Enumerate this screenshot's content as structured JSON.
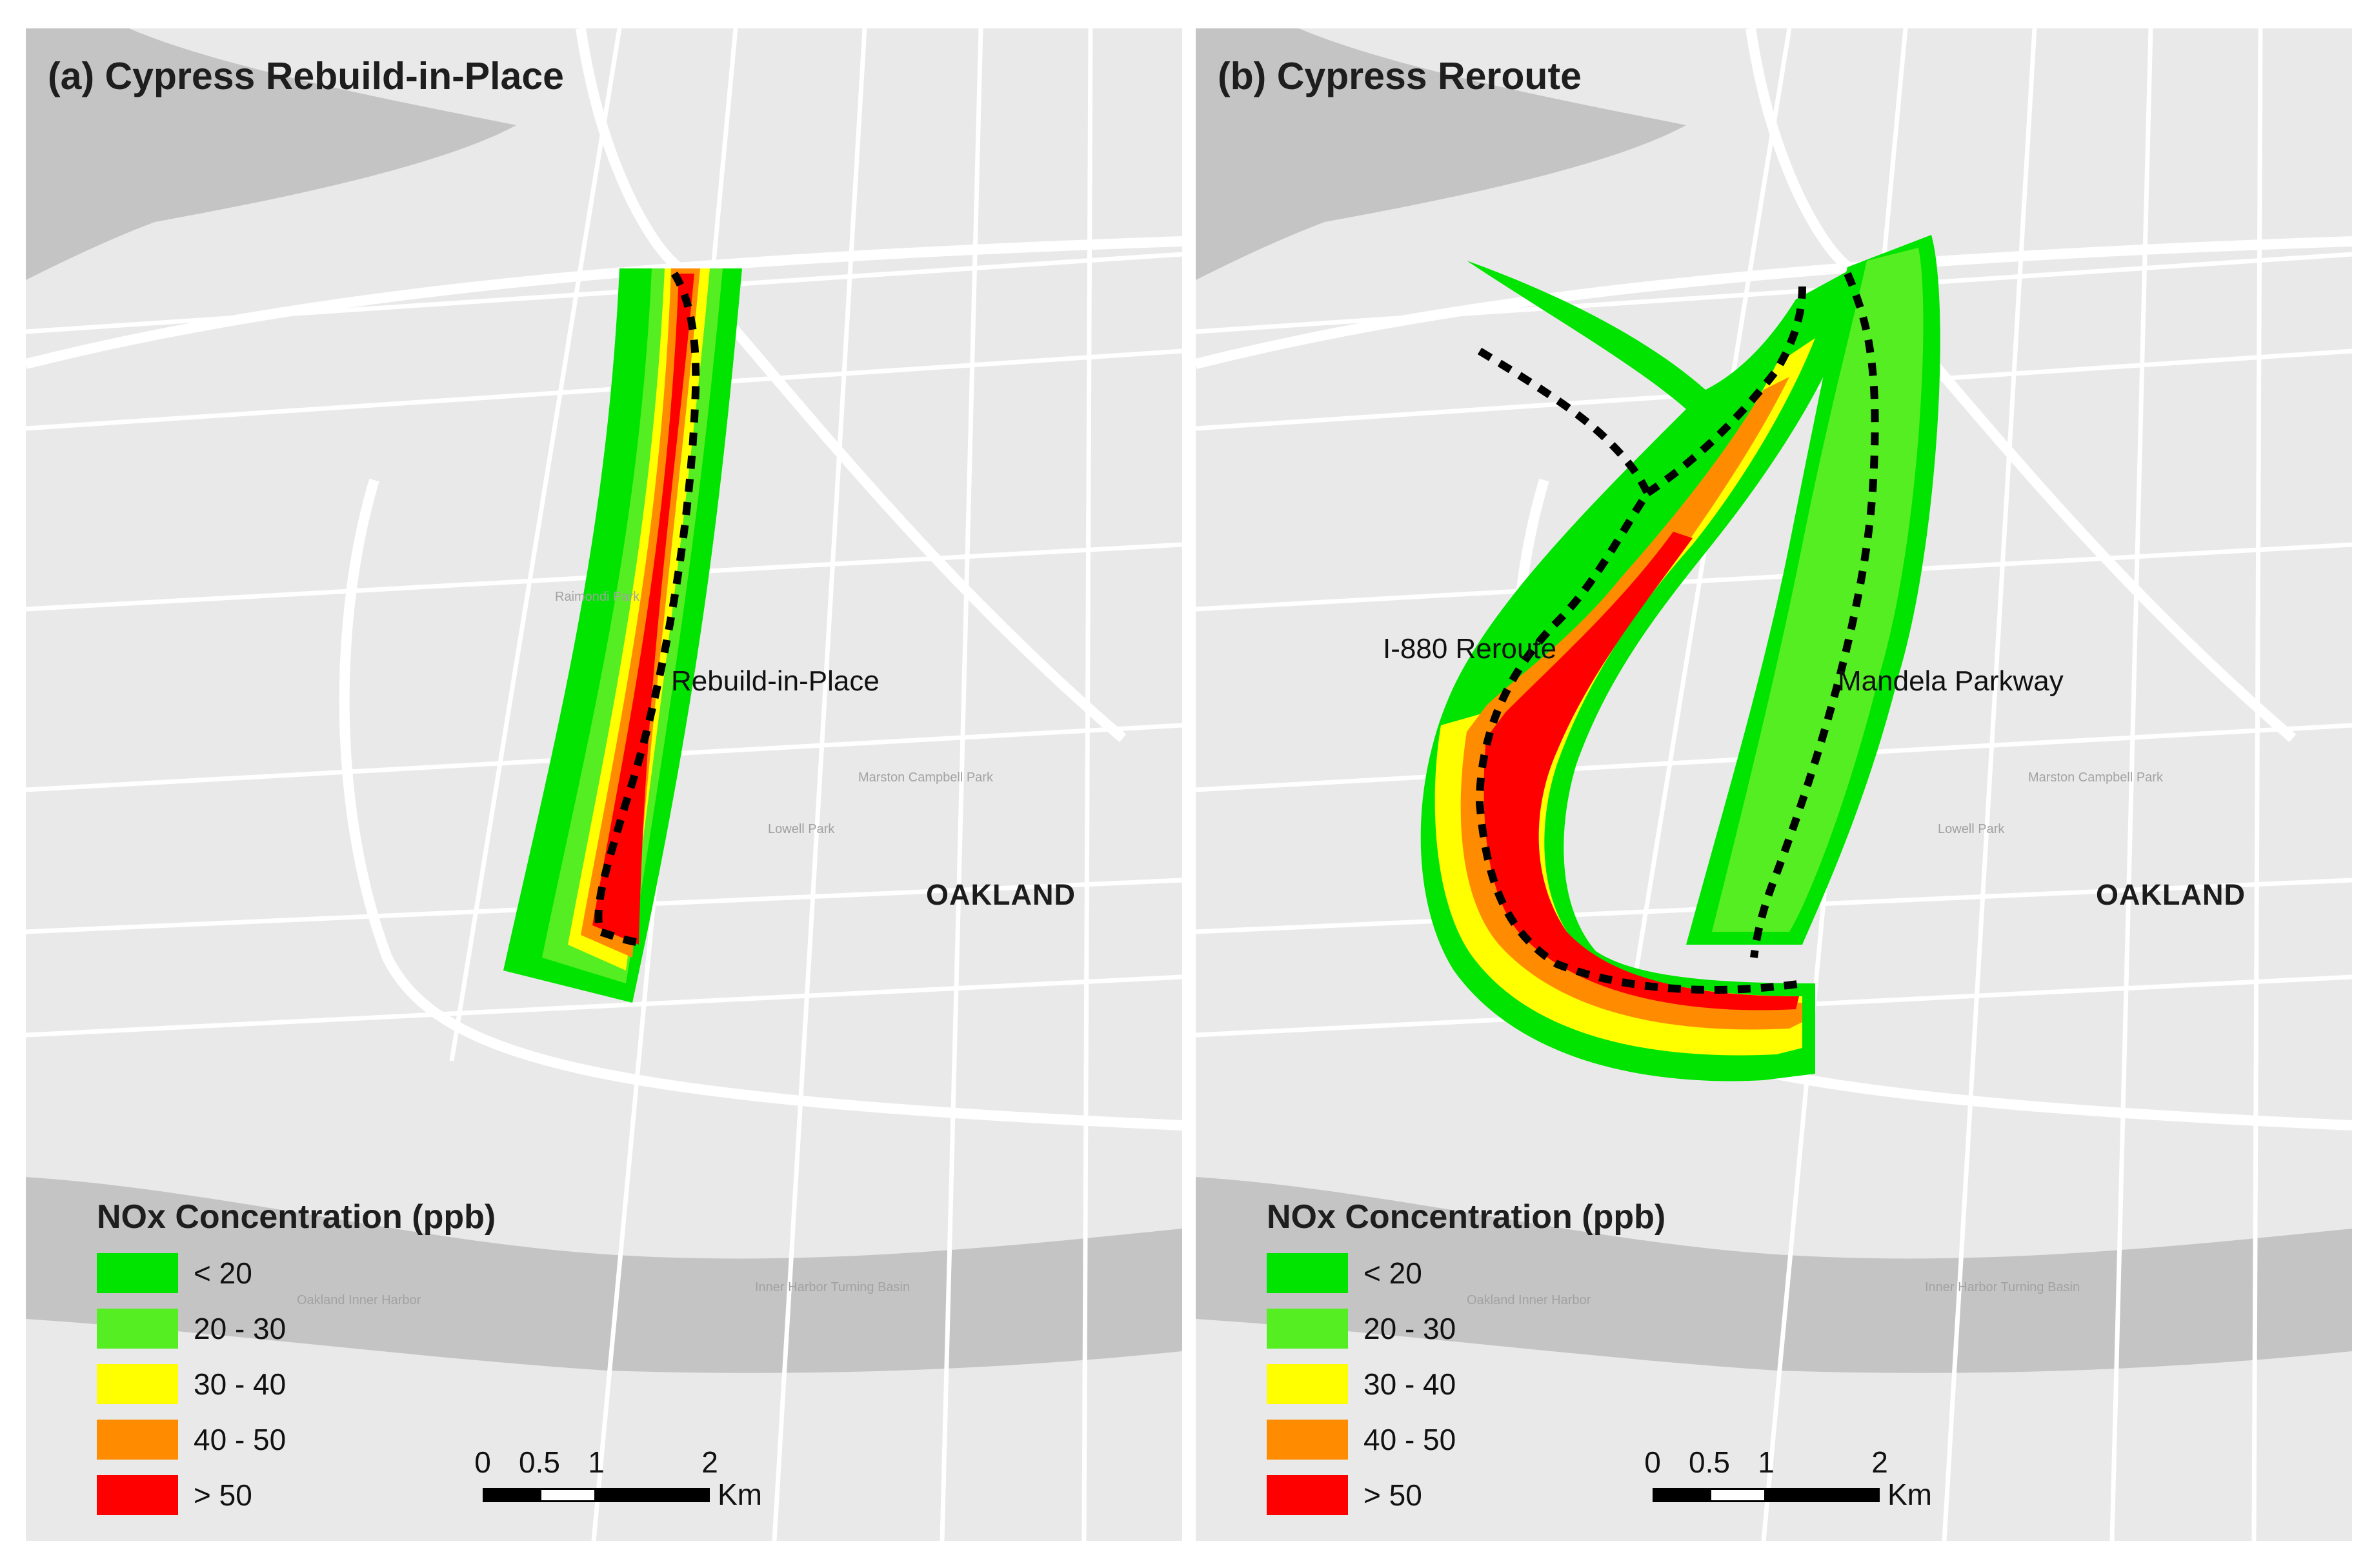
{
  "panels": [
    {
      "title": "(a) Cypress Rebuild-in-Place",
      "city_label": "OAKLAND",
      "route_labels": [
        "Rebuild-in-Place"
      ],
      "legend": {
        "title": "NOx Concentration (ppb)",
        "items": [
          {
            "label": "< 20",
            "color": "#00e400"
          },
          {
            "label": "20 - 30",
            "color": "#55ee22"
          },
          {
            "label": "30 - 40",
            "color": "#ffff00"
          },
          {
            "label": "40 - 50",
            "color": "#ff8c00"
          },
          {
            "label": "> 50",
            "color": "#ff0000"
          }
        ]
      },
      "scale": {
        "ticks": [
          "0",
          "0.5",
          "1",
          "2"
        ],
        "unit": "Km"
      }
    },
    {
      "title": "(b) Cypress Reroute",
      "city_label": "OAKLAND",
      "route_labels": [
        "I-880 Reroute",
        "Mandela Parkway"
      ],
      "legend": {
        "title": "NOx Concentration (ppb)",
        "items": [
          {
            "label": "< 20",
            "color": "#00e400"
          },
          {
            "label": "20 - 30",
            "color": "#55ee22"
          },
          {
            "label": "30 - 40",
            "color": "#ffff00"
          },
          {
            "label": "40 - 50",
            "color": "#ff8c00"
          },
          {
            "label": "> 50",
            "color": "#ff0000"
          }
        ]
      },
      "scale": {
        "ticks": [
          "0",
          "0.5",
          "1",
          "2"
        ],
        "unit": "Km"
      }
    }
  ],
  "basemap_text": {
    "water": [
      "Oakland Inner Harbor",
      "Inner Harbor Turning Basin"
    ],
    "parks": [
      "Lowell Park",
      "Marston Campbell Park",
      "Raimondi Park"
    ]
  },
  "colors": {
    "water": "#c4c4c4",
    "land": "#e9e9e9",
    "street": "#ffffff",
    "route_line": "#000000"
  }
}
